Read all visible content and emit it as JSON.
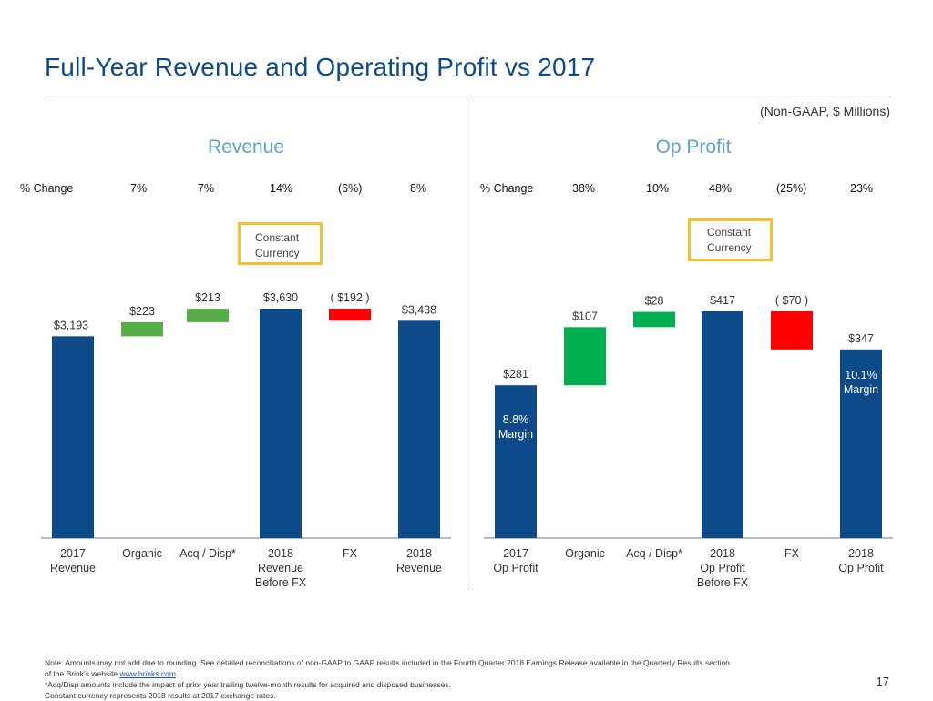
{
  "slide": {
    "title": "Full-Year Revenue and Operating Profit vs 2017",
    "units": "(Non-GAAP, $ Millions)",
    "page_number": "17",
    "footnotes": {
      "note_1": "Note: Amounts may not add due to rounding. See detailed reconciliations of non-GAAP to GAAP results included in the Fourth Quarter 2018 Earnings Release available in the Quarterly Results section",
      "note_2_prefix": "of the Brink’s website ",
      "note_2_link": "www.brinks.com",
      "note_2_suffix": ".",
      "note_3": "*Acq/Disp amounts include the impact of prior year trailing twelve-month results for acquired and disposed businesses.",
      "note_4": "Constant currency represents 2018 results at 2017 exchange rates."
    }
  },
  "colors": {
    "title": "#0c4a8a",
    "total_bar": "#0c4a8a",
    "positive_bar_revenue": "#56ad45",
    "positive_bar_profit": "#00b050",
    "negative_bar": "#ff0000",
    "box": "#f2c232",
    "section_title": "#5fa3c7"
  },
  "chart_data": [
    {
      "type": "waterfall",
      "title": "Revenue",
      "pct_change_label": "% Change",
      "pct_changes": [
        "7%",
        "7%",
        "14%",
        "(6%)",
        "8%"
      ],
      "constant_currency_label_1": "Constant",
      "constant_currency_label_2": "Currency",
      "categories": [
        [
          "2017",
          "Revenue"
        ],
        [
          "Organic"
        ],
        [
          "Acq / Disp*"
        ],
        [
          "2018",
          "Revenue",
          "Before FX"
        ],
        [
          "FX"
        ],
        [
          "2018",
          "Revenue"
        ]
      ],
      "values": [
        3193,
        223,
        213,
        3630,
        -192,
        3438
      ],
      "kinds": [
        "total",
        "delta",
        "delta",
        "total",
        "delta",
        "total"
      ],
      "value_labels": [
        "$3,193",
        "$223",
        "$213",
        "$3,630",
        "( $192 )",
        "$3,438"
      ],
      "ylim": [
        0,
        3630
      ]
    },
    {
      "type": "waterfall",
      "title": "Op Profit",
      "pct_change_label": "% Change",
      "pct_changes": [
        "38%",
        "10%",
        "48%",
        "(25%)",
        "23%"
      ],
      "constant_currency_label_1": "Constant",
      "constant_currency_label_2": "Currency",
      "categories": [
        [
          "2017",
          "Op Profit"
        ],
        [
          "Organic"
        ],
        [
          "Acq / Disp*"
        ],
        [
          "2018",
          "Op Profit",
          "Before FX"
        ],
        [
          "FX"
        ],
        [
          "2018",
          "Op Profit"
        ]
      ],
      "values": [
        281,
        107,
        28,
        417,
        -70,
        347
      ],
      "kinds": [
        "total",
        "delta",
        "delta",
        "total",
        "delta",
        "total"
      ],
      "value_labels": [
        "$281",
        "$107",
        "$28",
        "$417",
        "( $70 )",
        "$347"
      ],
      "margin_labels": {
        "0": [
          "8.8%",
          "Margin"
        ],
        "5": [
          "10.1%",
          "Margin"
        ]
      },
      "ylim": [
        0,
        417
      ]
    }
  ]
}
